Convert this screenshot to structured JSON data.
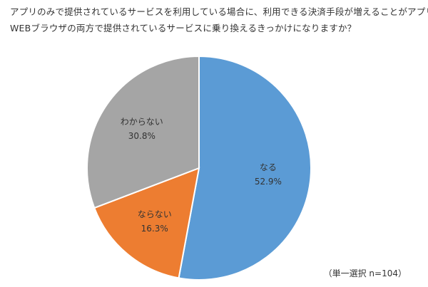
{
  "header": {
    "title_line_1": "アプリのみで提供されているサービスを利用している場合に、利用できる決済手段が増えることがアプリと",
    "title_line_2": "WEBブラウザの両方で提供されているサービスに乗り換えるきっかけになりますか？"
  },
  "chart_data": {
    "type": "pie",
    "title": "アプリのみで提供されているサービスを利用している場合に、利用できる決済手段が増えることがアプリとWEBブラウザの両方で提供されているサービスに乗り換えるきっかけになりますか？",
    "start": "12 o'clock",
    "direction": "clockwise",
    "slices": [
      {
        "label": "なる",
        "value_label": "52.9%",
        "value": 52.9,
        "color": "#5B9BD5"
      },
      {
        "label": "ならない",
        "value_label": "16.3%",
        "value": 16.3,
        "color": "#ED7D31"
      },
      {
        "label": "わからない",
        "value_label": "30.8%",
        "value": 30.8,
        "color": "#A5A5A5"
      }
    ],
    "legend": "none",
    "slice_borders": "white"
  },
  "footer": {
    "note": "（単一選択 n=104）"
  }
}
